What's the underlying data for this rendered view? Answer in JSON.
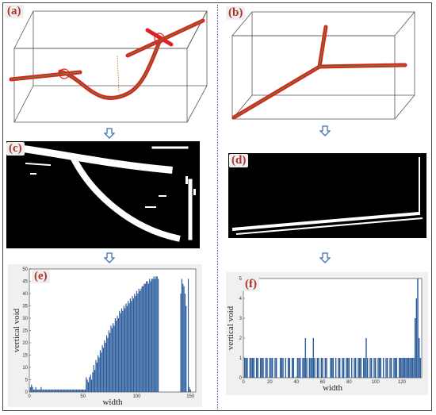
{
  "panels": {
    "a": {
      "label": "(a)"
    },
    "b": {
      "label": "(b)"
    },
    "c": {
      "label": "(c)"
    },
    "d": {
      "label": "(d)"
    },
    "e": {
      "label": "(e)"
    },
    "f": {
      "label": "(f)"
    }
  },
  "colors": {
    "vessel": "#dd2222",
    "centerline": "#33aa33",
    "bar": "#2a5b9a",
    "box": "#333333",
    "arrow": "#3f6fb5"
  },
  "chart_data": [
    {
      "id": "e",
      "type": "bar",
      "xlabel": "width",
      "ylabel": "vertical void",
      "xlim": [
        0,
        155
      ],
      "ylim": [
        0,
        50
      ],
      "xticks": [
        0,
        50,
        100,
        150
      ],
      "yticks": [
        0,
        5,
        10,
        15,
        20,
        25,
        30,
        35,
        40,
        45,
        50
      ],
      "grid": false,
      "x": [
        1,
        2,
        3,
        4,
        5,
        6,
        7,
        8,
        9,
        10,
        11,
        12,
        13,
        14,
        15,
        16,
        17,
        18,
        19,
        20,
        21,
        22,
        23,
        24,
        25,
        26,
        27,
        28,
        29,
        30,
        31,
        32,
        33,
        34,
        35,
        36,
        37,
        38,
        39,
        40,
        41,
        42,
        43,
        44,
        45,
        46,
        47,
        48,
        49,
        50,
        51,
        52,
        53,
        54,
        55,
        56,
        57,
        58,
        59,
        60,
        61,
        62,
        63,
        64,
        65,
        66,
        67,
        68,
        69,
        70,
        71,
        72,
        73,
        74,
        75,
        76,
        77,
        78,
        79,
        80,
        81,
        82,
        83,
        84,
        85,
        86,
        87,
        88,
        89,
        90,
        91,
        92,
        93,
        94,
        95,
        96,
        97,
        98,
        99,
        100,
        101,
        102,
        103,
        104,
        105,
        106,
        107,
        108,
        109,
        110,
        111,
        112,
        113,
        114,
        115,
        116,
        117,
        118,
        119,
        120,
        121,
        122,
        123,
        124,
        125,
        126,
        127,
        128,
        129,
        130,
        131,
        132,
        133,
        134,
        135,
        136,
        137,
        138,
        139,
        140,
        141,
        142,
        143,
        144,
        145,
        146,
        147,
        148,
        149,
        150
      ],
      "values": [
        2,
        3,
        2,
        1,
        1,
        2,
        1,
        1,
        1,
        1,
        2,
        1,
        1,
        1,
        1,
        1,
        1,
        1,
        1,
        1,
        1,
        1,
        1,
        1,
        1,
        1,
        1,
        1,
        1,
        1,
        1,
        1,
        1,
        1,
        1,
        1,
        1,
        1,
        1,
        1,
        1,
        1,
        1,
        1,
        1,
        1,
        1,
        1,
        1,
        1,
        1,
        1,
        6,
        5,
        4,
        6,
        7,
        5,
        8,
        11,
        9,
        13,
        12,
        15,
        14,
        17,
        16,
        19,
        18,
        21,
        20,
        23,
        22,
        25,
        24,
        27,
        26,
        28,
        27,
        30,
        29,
        31,
        30,
        33,
        32,
        34,
        33,
        35,
        34,
        36,
        35,
        37,
        36,
        38,
        37,
        39,
        38,
        40,
        39,
        41,
        40,
        42,
        41,
        42,
        43,
        43,
        44,
        44,
        45,
        45,
        44,
        46,
        45,
        46,
        46,
        47,
        46,
        47,
        47,
        46,
        0,
        0,
        0,
        0,
        0,
        0,
        0,
        0,
        0,
        0,
        0,
        0,
        0,
        0,
        0,
        0,
        0,
        0,
        0,
        0,
        40,
        46,
        44,
        43,
        40,
        35,
        0,
        46,
        2,
        1
      ]
    },
    {
      "id": "f",
      "type": "bar",
      "xlabel": "width",
      "ylabel": "vertical void",
      "xlim": [
        0,
        135
      ],
      "ylim": [
        0,
        5
      ],
      "xticks": [
        0,
        20,
        40,
        60,
        80,
        100,
        120
      ],
      "yticks": [
        0,
        1,
        2,
        3,
        4,
        5
      ],
      "grid": false,
      "x": [
        1,
        2,
        3,
        4,
        5,
        6,
        7,
        8,
        9,
        10,
        11,
        12,
        13,
        14,
        15,
        16,
        17,
        18,
        19,
        20,
        21,
        22,
        23,
        24,
        25,
        26,
        27,
        28,
        29,
        30,
        31,
        32,
        33,
        34,
        35,
        36,
        37,
        38,
        39,
        40,
        41,
        42,
        43,
        44,
        45,
        46,
        47,
        48,
        49,
        50,
        51,
        52,
        53,
        54,
        55,
        56,
        57,
        58,
        59,
        60,
        61,
        62,
        63,
        64,
        65,
        66,
        67,
        68,
        69,
        70,
        71,
        72,
        73,
        74,
        75,
        76,
        77,
        78,
        79,
        80,
        81,
        82,
        83,
        84,
        85,
        86,
        87,
        88,
        89,
        90,
        91,
        92,
        93,
        94,
        95,
        96,
        97,
        98,
        99,
        100,
        101,
        102,
        103,
        104,
        105,
        106,
        107,
        108,
        109,
        110,
        111,
        112,
        113,
        114,
        115,
        116,
        117,
        118,
        119,
        120,
        121,
        122,
        123,
        124,
        125,
        126,
        127,
        128,
        129,
        130,
        131,
        132,
        133,
        134
      ],
      "values": [
        1,
        1,
        1,
        0,
        1,
        1,
        1,
        1,
        0,
        1,
        1,
        0,
        1,
        1,
        1,
        0,
        1,
        1,
        0,
        1,
        1,
        1,
        0,
        1,
        1,
        0,
        0,
        1,
        1,
        1,
        0,
        1,
        0,
        1,
        1,
        0,
        1,
        1,
        0,
        0,
        1,
        1,
        1,
        0,
        1,
        1,
        2,
        1,
        0,
        1,
        1,
        1,
        2,
        1,
        0,
        1,
        1,
        0,
        1,
        1,
        0,
        1,
        1,
        0,
        0,
        1,
        1,
        1,
        0,
        1,
        0,
        1,
        1,
        0,
        1,
        1,
        0,
        1,
        1,
        1,
        0,
        1,
        0,
        1,
        1,
        0,
        1,
        1,
        1,
        0,
        1,
        1,
        2,
        1,
        0,
        1,
        1,
        0,
        1,
        1,
        0,
        1,
        1,
        1,
        0,
        1,
        0,
        1,
        1,
        0,
        1,
        1,
        0,
        1,
        1,
        1,
        0,
        1,
        1,
        1,
        1,
        1,
        1,
        1,
        1,
        1,
        1,
        1,
        1,
        3,
        4,
        5,
        2,
        1
      ]
    }
  ]
}
